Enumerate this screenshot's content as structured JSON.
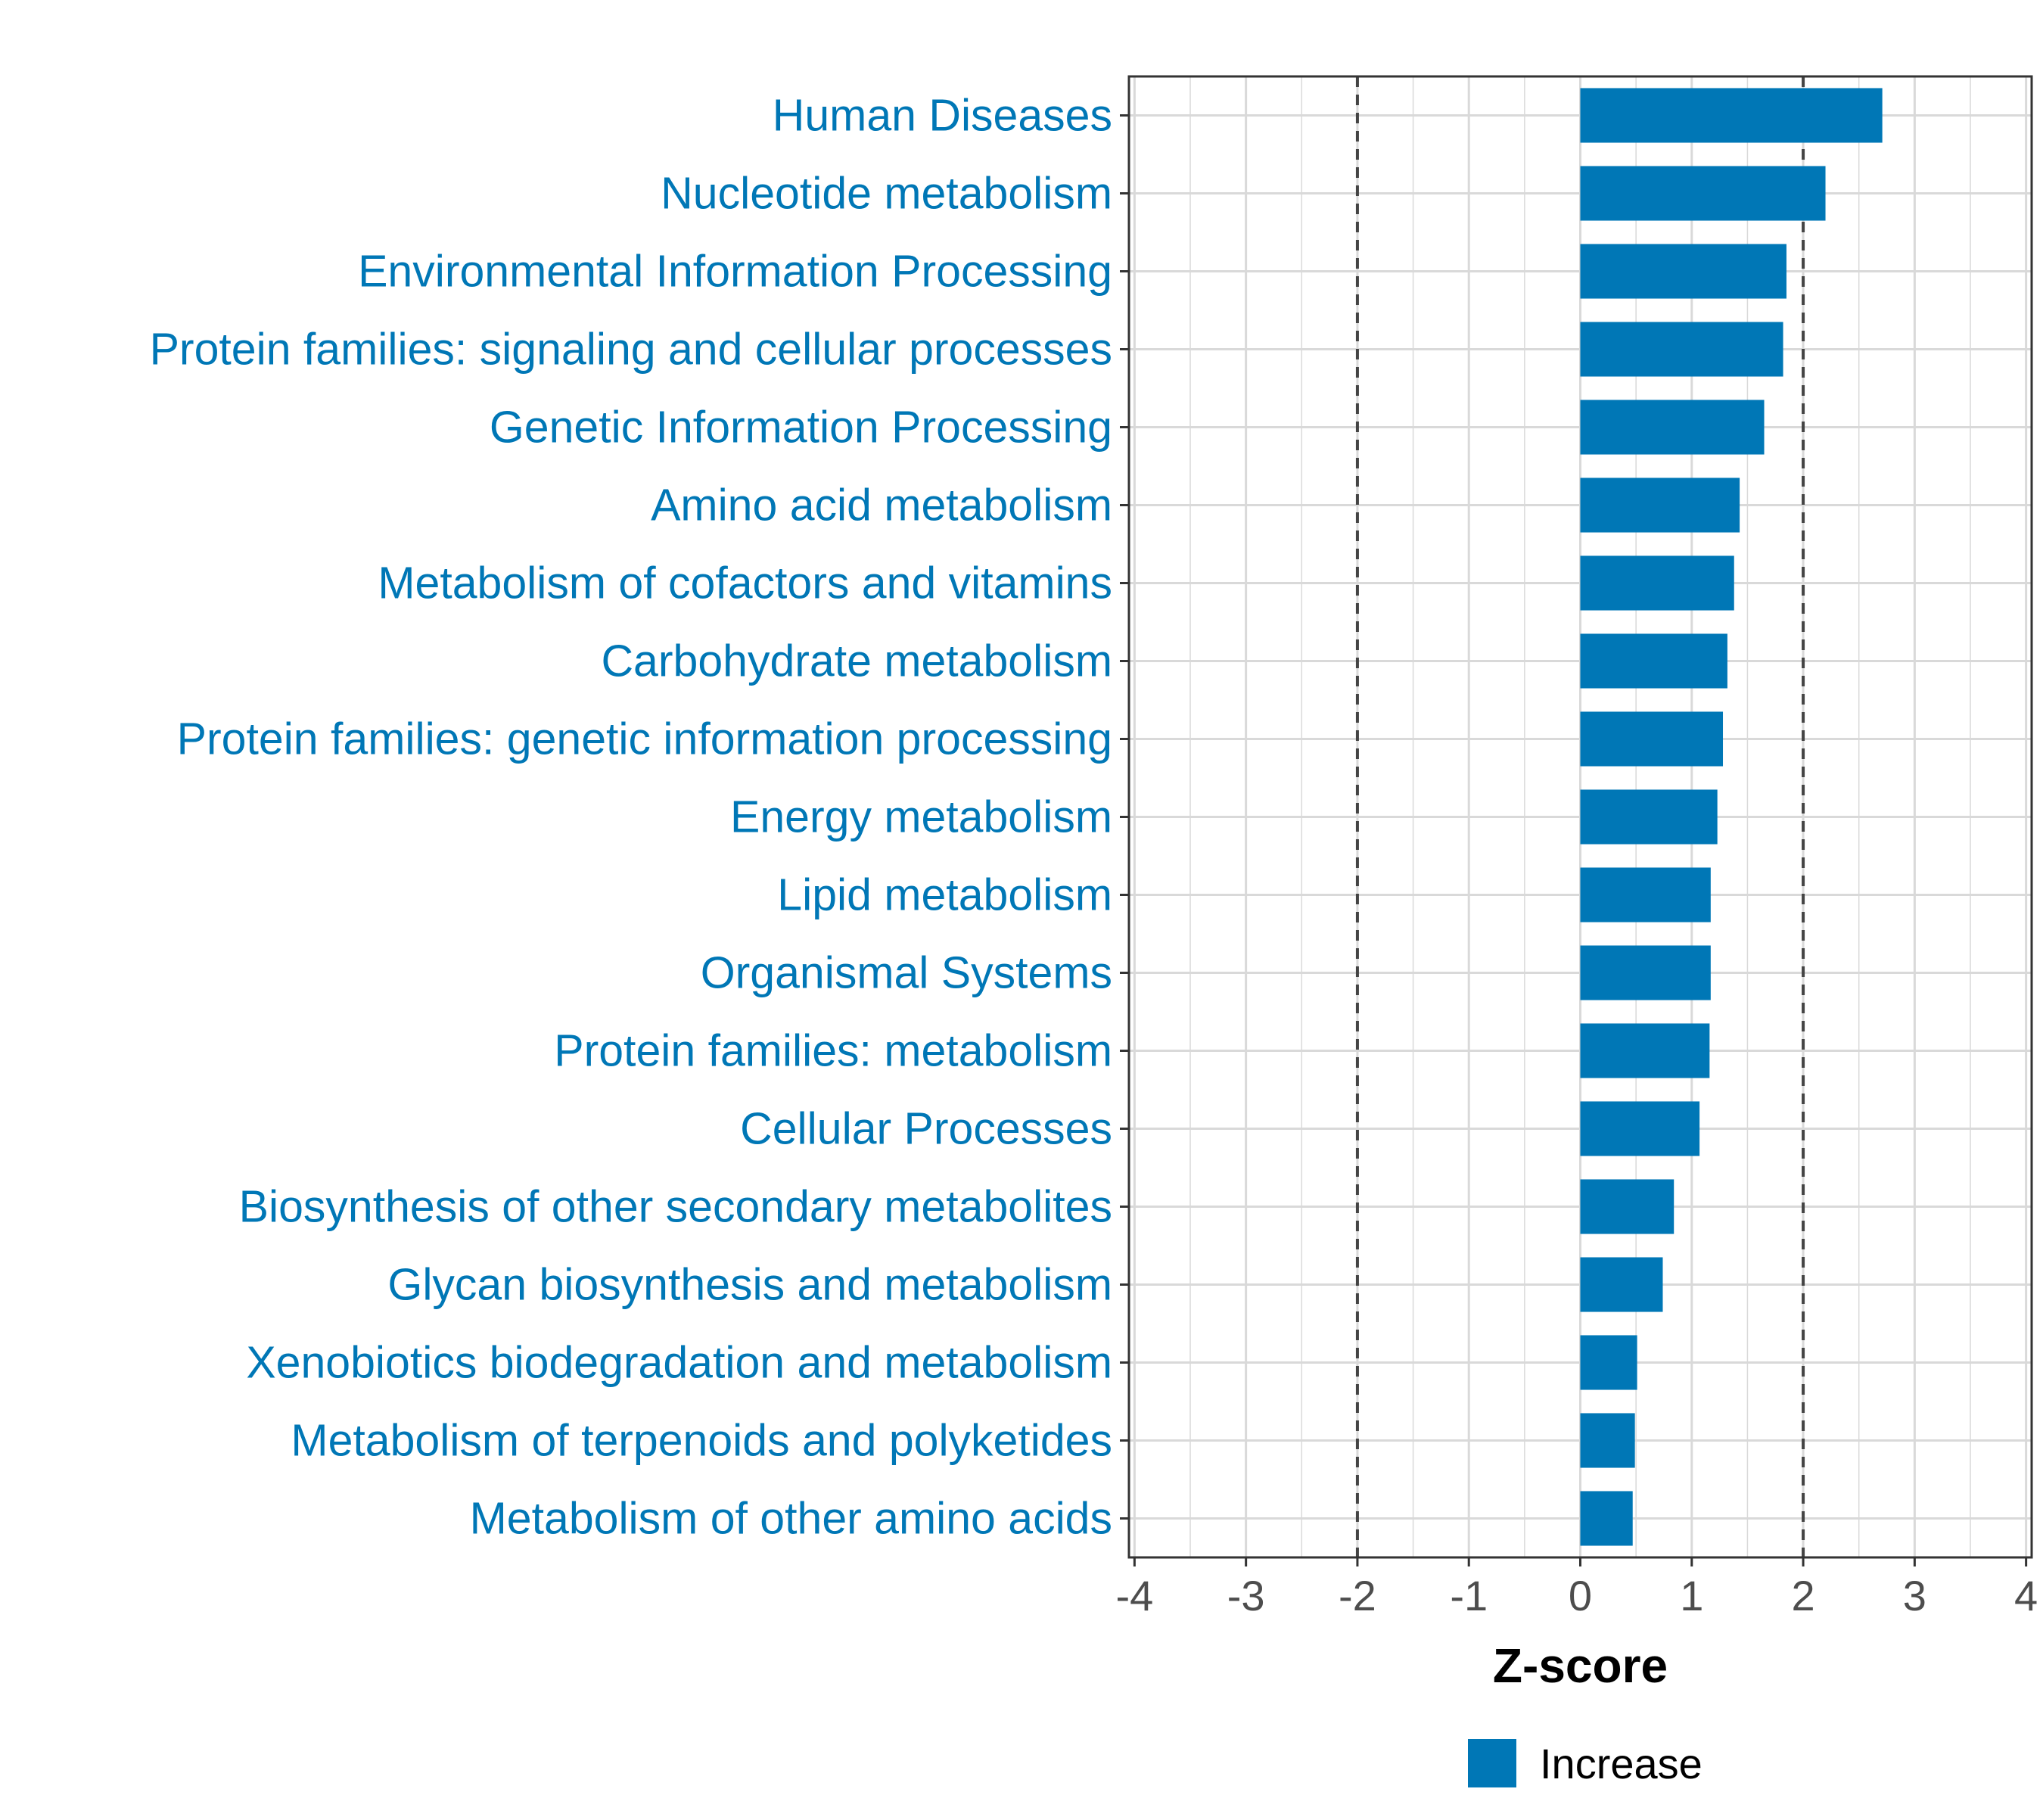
{
  "chart_data": {
    "type": "bar",
    "orientation": "horizontal",
    "categories": [
      "Human Diseases",
      "Nucleotide metabolism",
      "Environmental Information Processing",
      "Protein families: signaling and cellular processes",
      "Genetic Information Processing",
      "Amino acid metabolism",
      "Metabolism of cofactors and vitamins",
      "Carbohydrate metabolism",
      "Protein families: genetic information processing",
      "Energy metabolism",
      "Lipid metabolism",
      "Organismal Systems",
      "Protein families: metabolism",
      "Cellular Processes",
      "Biosynthesis of other secondary metabolites",
      "Glycan biosynthesis and metabolism",
      "Xenobiotics biodegradation and metabolism",
      "Metabolism of terpenoids and polyketides",
      "Metabolism of other amino acids"
    ],
    "values": [
      2.71,
      2.2,
      1.85,
      1.82,
      1.65,
      1.43,
      1.38,
      1.32,
      1.28,
      1.23,
      1.17,
      1.17,
      1.16,
      1.07,
      0.84,
      0.74,
      0.51,
      0.49,
      0.47
    ],
    "series_name": "Increase",
    "xlabel": "Z-score",
    "ylabel": "",
    "xlim": [
      -4.05,
      4.05
    ],
    "x_ticks": [
      "-4",
      "-3",
      "-2",
      "-1",
      "0",
      "1",
      "2",
      "3",
      "4"
    ],
    "reference_lines": [
      -2,
      2
    ],
    "legend": {
      "position": "bottom",
      "label": "Increase"
    },
    "grid": true,
    "colors": {
      "bar": "#0077b6",
      "category_label": "#0077b6",
      "grid": "#d9d9d9",
      "reference_line": "#444444",
      "axis": "#333333",
      "tick_label": "#4d4d4d",
      "axis_title": "#000000"
    }
  }
}
